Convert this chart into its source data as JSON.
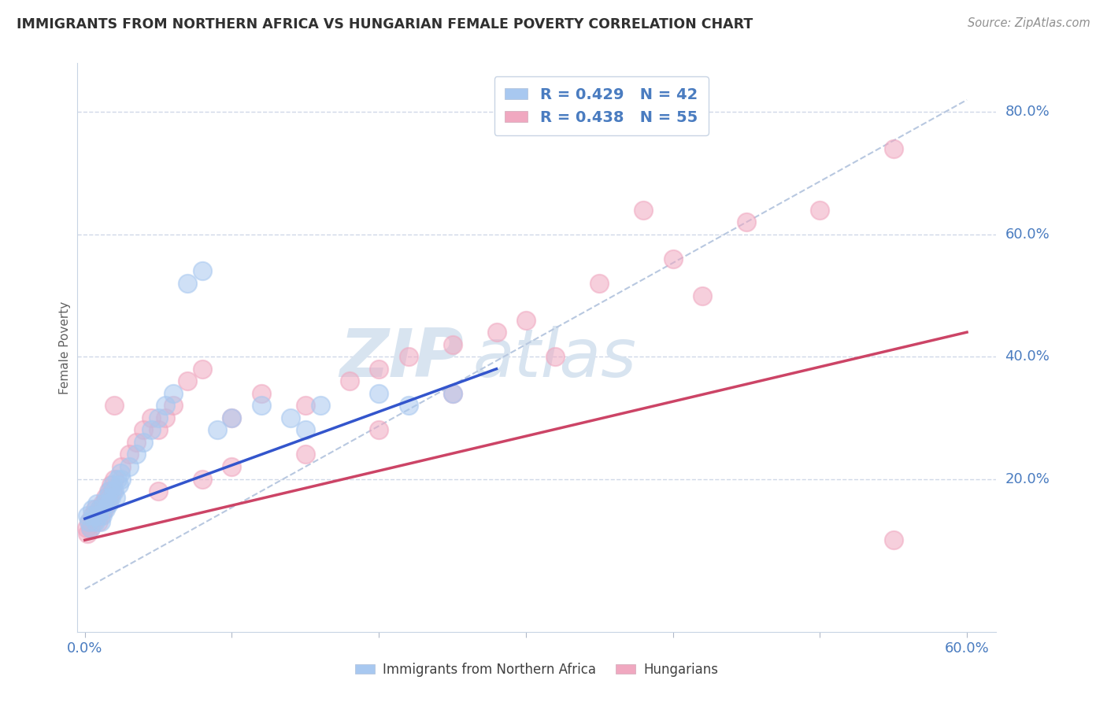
{
  "title": "IMMIGRANTS FROM NORTHERN AFRICA VS HUNGARIAN FEMALE POVERTY CORRELATION CHART",
  "source": "Source: ZipAtlas.com",
  "ylabel": "Female Poverty",
  "xlim": [
    -0.005,
    0.62
  ],
  "ylim": [
    -0.05,
    0.88
  ],
  "ytick_positions": [
    0.2,
    0.4,
    0.6,
    0.8
  ],
  "ytick_labels": [
    "20.0%",
    "40.0%",
    "60.0%",
    "80.0%"
  ],
  "blue_R": 0.429,
  "blue_N": 42,
  "pink_R": 0.438,
  "pink_N": 55,
  "blue_color": "#a8c8f0",
  "pink_color": "#f0a8c0",
  "blue_line_color": "#3355cc",
  "pink_line_color": "#cc4466",
  "ref_line_color": "#b8c8e0",
  "title_color": "#303030",
  "axis_color": "#4a7cc0",
  "legend_R_color": "#4a7cc0",
  "watermark_color": "#d8e4f0",
  "blue_scatter_x": [
    0.002,
    0.003,
    0.004,
    0.005,
    0.006,
    0.007,
    0.008,
    0.009,
    0.01,
    0.011,
    0.012,
    0.013,
    0.014,
    0.015,
    0.016,
    0.017,
    0.018,
    0.019,
    0.02,
    0.021,
    0.022,
    0.023,
    0.024,
    0.025,
    0.03,
    0.035,
    0.04,
    0.045,
    0.05,
    0.055,
    0.06,
    0.07,
    0.08,
    0.09,
    0.1,
    0.12,
    0.14,
    0.15,
    0.16,
    0.2,
    0.22,
    0.25
  ],
  "blue_scatter_y": [
    0.14,
    0.13,
    0.12,
    0.15,
    0.14,
    0.13,
    0.16,
    0.14,
    0.15,
    0.13,
    0.14,
    0.16,
    0.15,
    0.17,
    0.16,
    0.18,
    0.17,
    0.19,
    0.18,
    0.17,
    0.2,
    0.19,
    0.21,
    0.2,
    0.22,
    0.24,
    0.26,
    0.28,
    0.3,
    0.32,
    0.34,
    0.52,
    0.54,
    0.28,
    0.3,
    0.32,
    0.3,
    0.28,
    0.32,
    0.34,
    0.32,
    0.34
  ],
  "pink_scatter_x": [
    0.001,
    0.002,
    0.003,
    0.004,
    0.005,
    0.006,
    0.007,
    0.008,
    0.009,
    0.01,
    0.011,
    0.012,
    0.013,
    0.014,
    0.015,
    0.016,
    0.017,
    0.018,
    0.019,
    0.02,
    0.025,
    0.03,
    0.035,
    0.04,
    0.045,
    0.05,
    0.055,
    0.06,
    0.07,
    0.08,
    0.1,
    0.12,
    0.15,
    0.18,
    0.2,
    0.22,
    0.25,
    0.28,
    0.3,
    0.35,
    0.4,
    0.45,
    0.5,
    0.55,
    0.55,
    0.42,
    0.38,
    0.32,
    0.25,
    0.2,
    0.15,
    0.1,
    0.08,
    0.05,
    0.02
  ],
  "pink_scatter_y": [
    0.12,
    0.11,
    0.13,
    0.12,
    0.14,
    0.13,
    0.15,
    0.14,
    0.13,
    0.15,
    0.14,
    0.16,
    0.15,
    0.17,
    0.16,
    0.18,
    0.17,
    0.19,
    0.18,
    0.2,
    0.22,
    0.24,
    0.26,
    0.28,
    0.3,
    0.28,
    0.3,
    0.32,
    0.36,
    0.38,
    0.3,
    0.34,
    0.32,
    0.36,
    0.38,
    0.4,
    0.42,
    0.44,
    0.46,
    0.52,
    0.56,
    0.62,
    0.64,
    0.74,
    0.1,
    0.5,
    0.64,
    0.4,
    0.34,
    0.28,
    0.24,
    0.22,
    0.2,
    0.18,
    0.32
  ],
  "blue_line_x": [
    0.0,
    0.28
  ],
  "blue_line_y": [
    0.135,
    0.38
  ],
  "pink_line_x": [
    0.0,
    0.6
  ],
  "pink_line_y": [
    0.1,
    0.44
  ],
  "ref_line_x": [
    0.0,
    0.6
  ],
  "ref_line_y": [
    0.02,
    0.82
  ]
}
